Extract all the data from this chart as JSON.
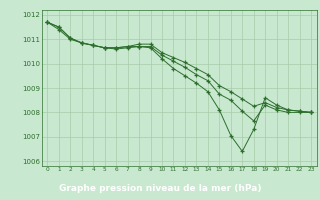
{
  "background_color": "#c8e8d0",
  "grid_color": "#a8cca8",
  "line_color": "#2d6e2d",
  "marker_color": "#2d6e2d",
  "xlabel": "Graphe pression niveau de la mer (hPa)",
  "xlabel_color": "#ffffff",
  "xlabel_bg": "#2d6e2d",
  "ylim": [
    1005.8,
    1012.2
  ],
  "xlim": [
    -0.5,
    23.5
  ],
  "yticks": [
    1006,
    1007,
    1008,
    1009,
    1010,
    1011,
    1012
  ],
  "xticks": [
    0,
    1,
    2,
    3,
    4,
    5,
    6,
    7,
    8,
    9,
    10,
    11,
    12,
    13,
    14,
    15,
    16,
    17,
    18,
    19,
    20,
    21,
    22,
    23
  ],
  "series": [
    [
      1011.7,
      1011.4,
      1011.0,
      1010.85,
      1010.75,
      1010.65,
      1010.65,
      1010.7,
      1010.7,
      1010.7,
      1010.35,
      1010.1,
      1009.85,
      1009.55,
      1009.3,
      1008.75,
      1008.5,
      1008.05,
      1007.65,
      1008.3,
      1008.1,
      1008.0,
      1008.0,
      1008.0
    ],
    [
      1011.7,
      1011.5,
      1011.05,
      1010.85,
      1010.75,
      1010.65,
      1010.65,
      1010.7,
      1010.8,
      1010.8,
      1010.45,
      1010.25,
      1010.05,
      1009.8,
      1009.55,
      1009.1,
      1008.85,
      1008.55,
      1008.25,
      1008.4,
      1008.2,
      1008.1,
      1008.05,
      1008.0
    ],
    [
      1011.7,
      1011.5,
      1011.05,
      1010.85,
      1010.75,
      1010.65,
      1010.6,
      1010.65,
      1010.7,
      1010.65,
      1010.2,
      1009.8,
      1009.5,
      1009.2,
      1008.85,
      1008.1,
      1007.05,
      1006.4,
      1007.3,
      1008.6,
      1008.3,
      1008.1,
      1008.05,
      1008.0
    ]
  ]
}
